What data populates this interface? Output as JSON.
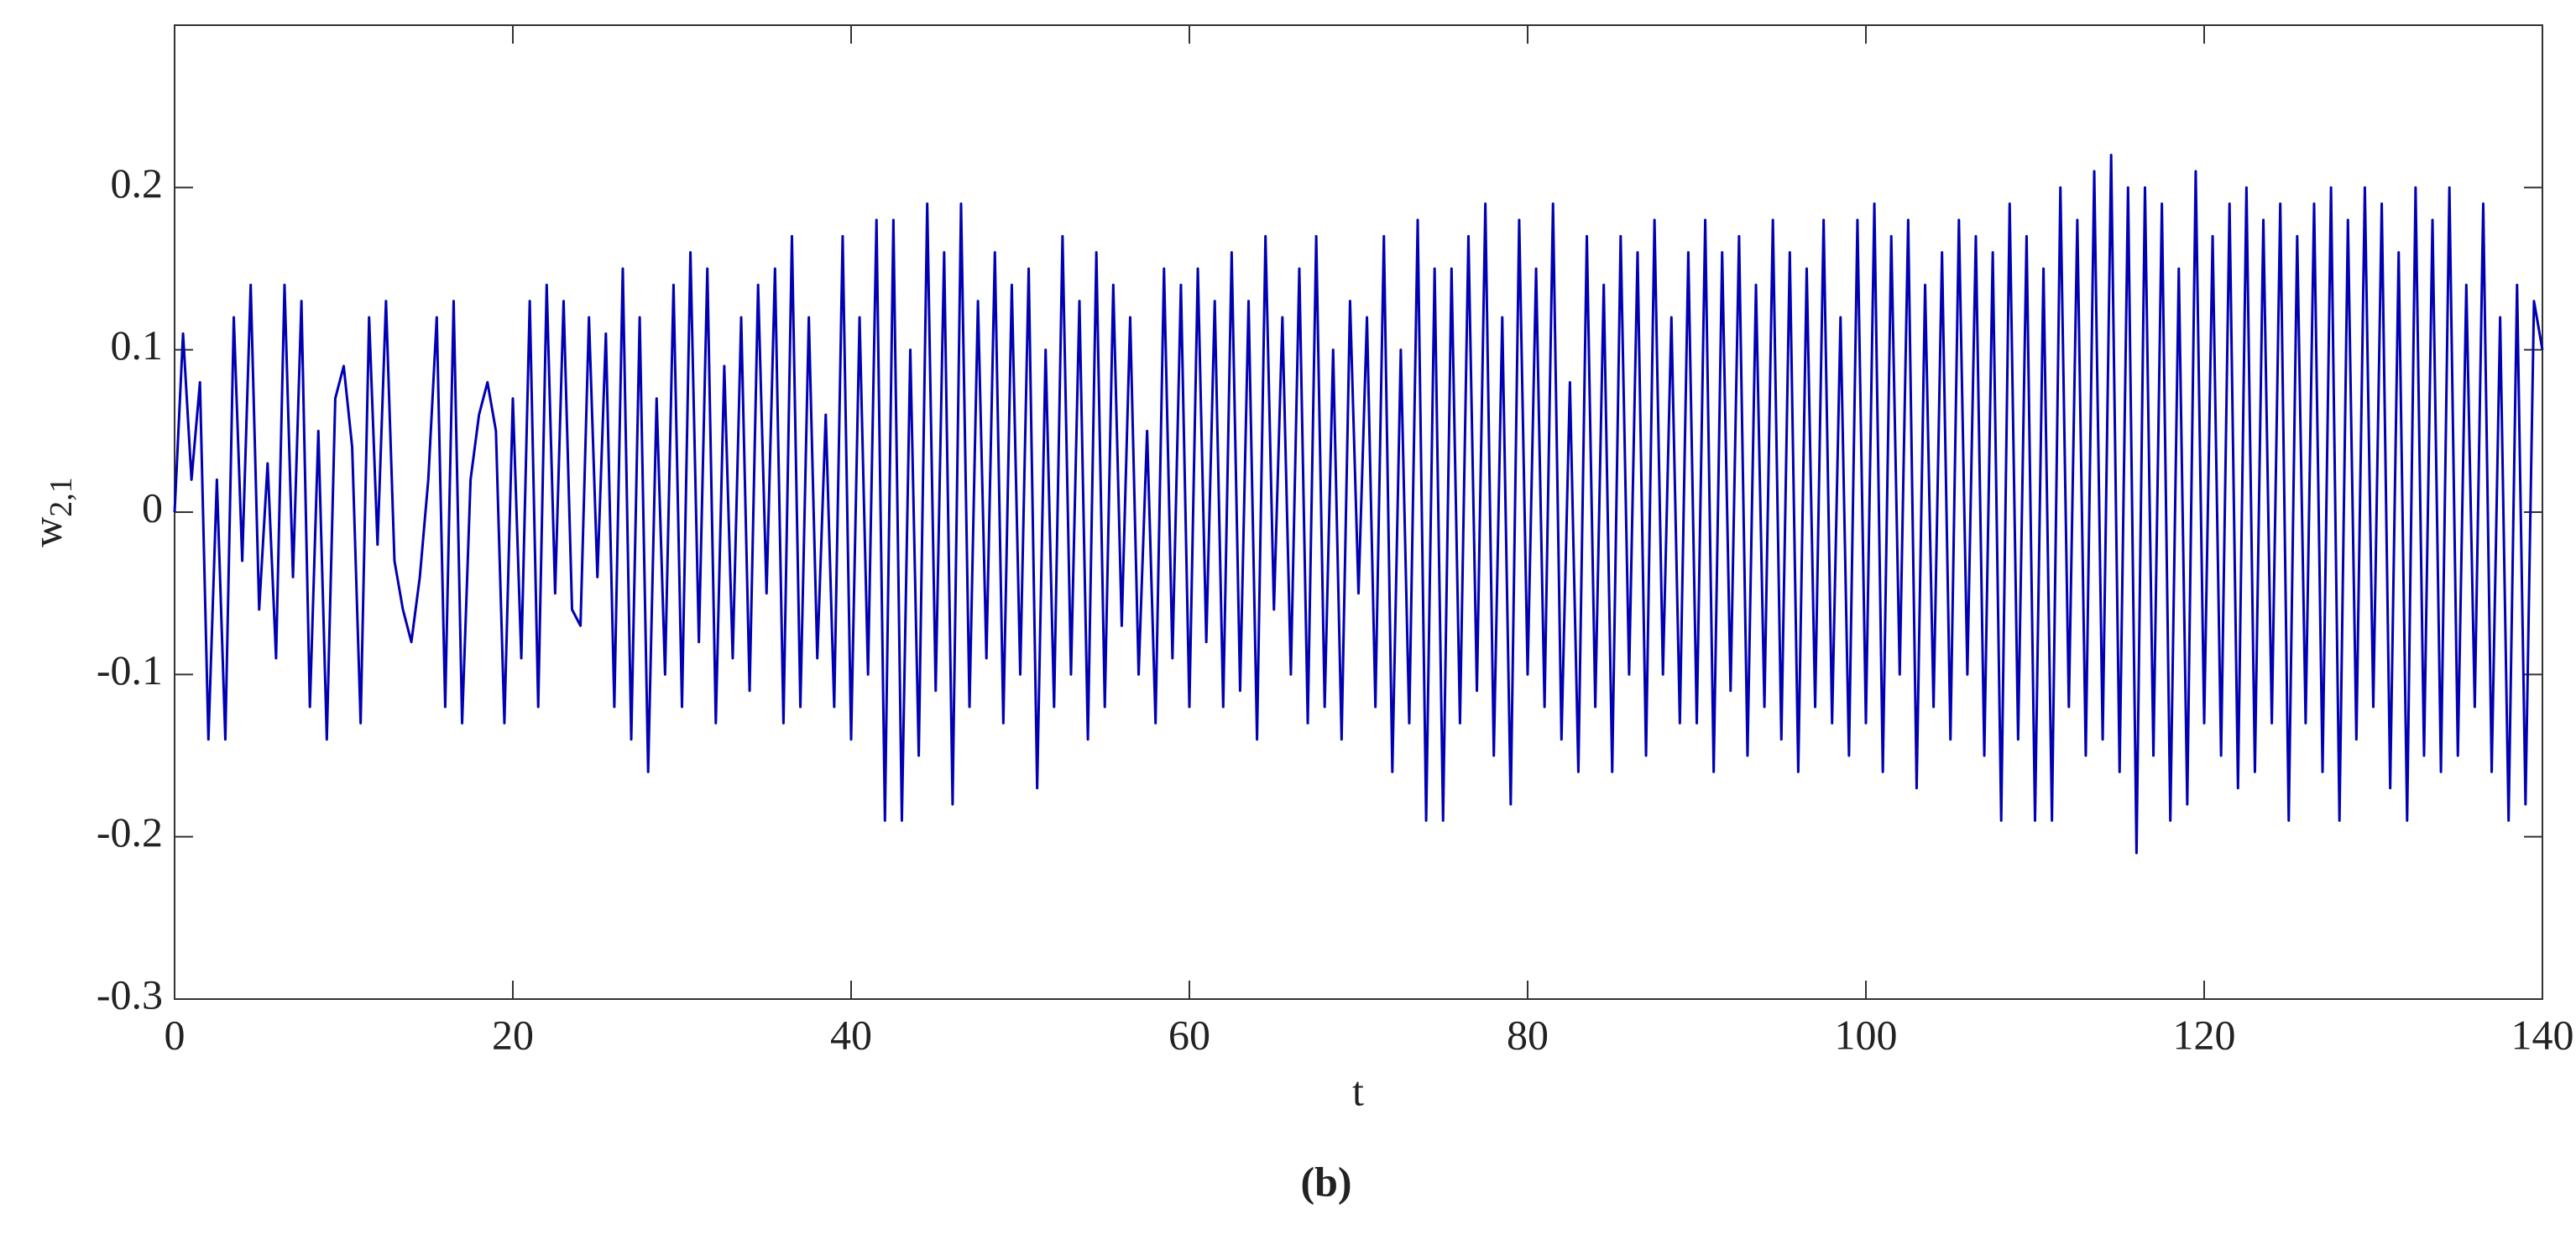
{
  "chart_data": {
    "type": "line",
    "xlabel": "t",
    "ylabel": {
      "text": "w",
      "subscript": "2,1"
    },
    "caption": "(b)",
    "xlim": [
      0,
      140
    ],
    "xticks": [
      0,
      20,
      40,
      60,
      80,
      100,
      120,
      140
    ],
    "ylim": [
      -0.3,
      0.3
    ],
    "yticks": [
      -0.3,
      -0.2,
      -0.1,
      0,
      0.1,
      0.2
    ],
    "grid": false,
    "x": [
      0,
      0.5,
      1,
      1.5,
      2,
      2.5,
      3,
      3.5,
      4,
      4.5,
      5,
      5.5,
      6,
      6.5,
      7,
      7.5,
      8,
      8.5,
      9,
      9.5,
      10,
      10.5,
      11,
      11.5,
      12,
      12.5,
      13,
      13.5,
      14,
      14.5,
      15,
      15.5,
      16,
      16.5,
      17,
      17.5,
      18,
      18.5,
      19,
      19.5,
      20,
      20.5,
      21,
      21.5,
      22,
      22.5,
      23,
      23.5,
      24,
      24.5,
      25,
      25.5,
      26,
      26.5,
      27,
      27.5,
      28,
      28.5,
      29,
      29.5,
      30,
      30.5,
      31,
      31.5,
      32,
      32.5,
      33,
      33.5,
      34,
      34.5,
      35,
      35.5,
      36,
      36.5,
      37,
      37.5,
      38,
      38.5,
      39,
      39.5,
      40,
      40.5,
      41,
      41.5,
      42,
      42.5,
      43,
      43.5,
      44,
      44.5,
      45,
      45.5,
      46,
      46.5,
      47,
      47.5,
      48,
      48.5,
      49,
      49.5,
      50,
      50.5,
      51,
      51.5,
      52,
      52.5,
      53,
      53.5,
      54,
      54.5,
      55,
      55.5,
      56,
      56.5,
      57,
      57.5,
      58,
      58.5,
      59,
      59.5,
      60,
      60.5,
      61,
      61.5,
      62,
      62.5,
      63,
      63.5,
      64,
      64.5,
      65,
      65.5,
      66,
      66.5,
      67,
      67.5,
      68,
      68.5,
      69,
      69.5,
      70,
      70.5,
      71,
      71.5,
      72,
      72.5,
      73,
      73.5,
      74,
      74.5,
      75,
      75.5,
      76,
      76.5,
      77,
      77.5,
      78,
      78.5,
      79,
      79.5,
      80,
      80.5,
      81,
      81.5,
      82,
      82.5,
      83,
      83.5,
      84,
      84.5,
      85,
      85.5,
      86,
      86.5,
      87,
      87.5,
      88,
      88.5,
      89,
      89.5,
      90,
      90.5,
      91,
      91.5,
      92,
      92.5,
      93,
      93.5,
      94,
      94.5,
      95,
      95.5,
      96,
      96.5,
      97,
      97.5,
      98,
      98.5,
      99,
      99.5,
      100,
      100.5,
      101,
      101.5,
      102,
      102.5,
      103,
      103.5,
      104,
      104.5,
      105,
      105.5,
      106,
      106.5,
      107,
      107.5,
      108,
      108.5,
      109,
      109.5,
      110,
      110.5,
      111,
      111.5,
      112,
      112.5,
      113,
      113.5,
      114,
      114.5,
      115,
      115.5,
      116,
      116.5,
      117,
      117.5,
      118,
      118.5,
      119,
      119.5,
      120,
      120.5,
      121,
      121.5,
      122,
      122.5,
      123,
      123.5,
      124,
      124.5,
      125,
      125.5,
      126,
      126.5,
      127,
      127.5,
      128,
      128.5,
      129,
      129.5,
      130,
      130.5,
      131,
      131.5,
      132,
      132.5,
      133,
      133.5,
      134,
      134.5,
      135,
      135.5,
      136,
      136.5,
      137,
      137.5,
      138,
      138.5,
      139,
      139.5,
      140
    ],
    "series": [
      {
        "color": "#0000b4",
        "values": [
          0,
          0.11,
          0.02,
          0.08,
          -0.14,
          0.02,
          -0.14,
          0.12,
          -0.03,
          0.14,
          -0.06,
          0.03,
          -0.09,
          0.14,
          -0.04,
          0.13,
          -0.12,
          0.05,
          -0.14,
          0.07,
          0.09,
          0.04,
          -0.13,
          0.12,
          -0.02,
          0.13,
          -0.03,
          -0.06,
          -0.08,
          -0.04,
          0.02,
          0.12,
          -0.12,
          0.13,
          -0.13,
          0.02,
          0.06,
          0.08,
          0.05,
          -0.13,
          0.07,
          -0.09,
          0.13,
          -0.12,
          0.14,
          -0.05,
          0.13,
          -0.06,
          -0.07,
          0.12,
          -0.04,
          0.11,
          -0.12,
          0.15,
          -0.14,
          0.12,
          -0.16,
          0.07,
          -0.1,
          0.14,
          -0.12,
          0.16,
          -0.08,
          0.15,
          -0.13,
          0.09,
          -0.09,
          0.12,
          -0.11,
          0.14,
          -0.05,
          0.15,
          -0.13,
          0.17,
          -0.12,
          0.12,
          -0.09,
          0.06,
          -0.12,
          0.17,
          -0.14,
          0.12,
          -0.1,
          0.18,
          -0.19,
          0.18,
          -0.19,
          0.1,
          -0.15,
          0.19,
          -0.11,
          0.16,
          -0.18,
          0.19,
          -0.12,
          0.13,
          -0.09,
          0.16,
          -0.13,
          0.14,
          -0.1,
          0.15,
          -0.17,
          0.1,
          -0.12,
          0.17,
          -0.1,
          0.13,
          -0.14,
          0.16,
          -0.12,
          0.14,
          -0.07,
          0.12,
          -0.1,
          0.05,
          -0.13,
          0.15,
          -0.09,
          0.14,
          -0.12,
          0.15,
          -0.08,
          0.13,
          -0.12,
          0.16,
          -0.11,
          0.13,
          -0.14,
          0.17,
          -0.06,
          0.12,
          -0.1,
          0.15,
          -0.13,
          0.17,
          -0.12,
          0.1,
          -0.14,
          0.13,
          -0.05,
          0.12,
          -0.12,
          0.17,
          -0.16,
          0.1,
          -0.13,
          0.18,
          -0.19,
          0.15,
          -0.19,
          0.15,
          -0.13,
          0.17,
          -0.11,
          0.19,
          -0.15,
          0.12,
          -0.18,
          0.18,
          -0.1,
          0.15,
          -0.12,
          0.19,
          -0.14,
          0.08,
          -0.16,
          0.17,
          -0.12,
          0.14,
          -0.16,
          0.17,
          -0.1,
          0.16,
          -0.15,
          0.18,
          -0.1,
          0.12,
          -0.13,
          0.16,
          -0.13,
          0.18,
          -0.16,
          0.16,
          -0.11,
          0.17,
          -0.15,
          0.14,
          -0.12,
          0.18,
          -0.14,
          0.16,
          -0.16,
          0.15,
          -0.12,
          0.18,
          -0.13,
          0.12,
          -0.15,
          0.18,
          -0.13,
          0.19,
          -0.16,
          0.17,
          -0.1,
          0.18,
          -0.17,
          0.14,
          -0.12,
          0.16,
          -0.14,
          0.18,
          -0.1,
          0.17,
          -0.15,
          0.16,
          -0.19,
          0.19,
          -0.14,
          0.17,
          -0.19,
          0.15,
          -0.19,
          0.2,
          -0.12,
          0.18,
          -0.15,
          0.21,
          -0.14,
          0.22,
          -0.16,
          0.2,
          -0.21,
          0.2,
          -0.15,
          0.19,
          -0.19,
          0.15,
          -0.18,
          0.21,
          -0.13,
          0.17,
          -0.15,
          0.19,
          -0.17,
          0.2,
          -0.16,
          0.18,
          -0.13,
          0.19,
          -0.19,
          0.17,
          -0.13,
          0.19,
          -0.16,
          0.2,
          -0.19,
          0.18,
          -0.14,
          0.2,
          -0.12,
          0.19,
          -0.17,
          0.16,
          -0.19,
          0.2,
          -0.15,
          0.18,
          -0.16,
          0.2,
          -0.15,
          0.14,
          -0.12,
          0.19,
          -0.16,
          0.12,
          -0.19,
          0.14,
          -0.18,
          0.13,
          0.1
        ]
      }
    ]
  }
}
